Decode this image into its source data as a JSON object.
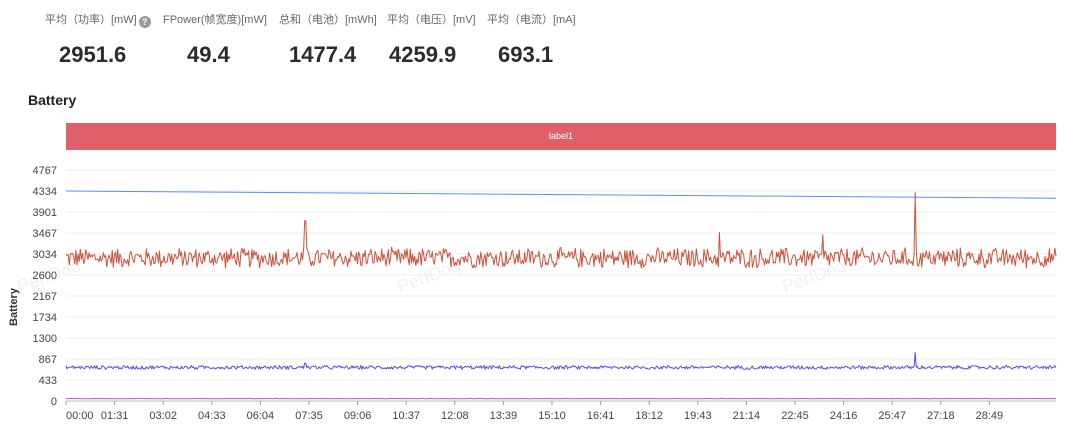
{
  "stats": [
    {
      "label": "平均（功率）[mW]",
      "value": "2951.6",
      "help_icon": "question-icon"
    },
    {
      "label": "FPower(帧宽度)[mW]",
      "value": "49.4"
    },
    {
      "label": "总和（电池）[mWh]",
      "value": "1477.4"
    },
    {
      "label": "平均（电压）[mV]",
      "value": "4259.9"
    },
    {
      "label": "平均（电流）[mA]",
      "value": "693.1"
    }
  ],
  "section_title": "Battery",
  "label_band": {
    "text": "label1",
    "color": "#e0606a"
  },
  "watermark": "PerfDog",
  "chart_data": {
    "type": "line",
    "ylabel": "Battery",
    "ylim": [
      0,
      4767
    ],
    "y_ticks": [
      "0",
      "433",
      "867",
      "1300",
      "1734",
      "2167",
      "2600",
      "3034",
      "3467",
      "3901",
      "4334",
      "4767"
    ],
    "x_ticks": [
      "00:00",
      "01:31",
      "03:02",
      "04:33",
      "06:04",
      "07:35",
      "09:06",
      "10:37",
      "12:08",
      "13:39",
      "15:10",
      "16:41",
      "18:12",
      "19:43",
      "21:14",
      "22:45",
      "24:16",
      "25:47",
      "27:18",
      "28:49"
    ],
    "x_range_seconds": [
      0,
      1870
    ],
    "grid": "horizontal",
    "series": [
      {
        "color": "#5b8ff9",
        "description": "voltage",
        "points": [
          [
            0,
            4334
          ],
          [
            1870,
            4186
          ]
        ]
      },
      {
        "color": "#c8533b",
        "description": "power",
        "mean": 2952,
        "noise": 230,
        "spikes": [
          [
            452,
            3720
          ],
          [
            1604,
            4300
          ],
          [
            1235,
            3480
          ],
          [
            1430,
            3430
          ]
        ]
      },
      {
        "color": "#6a46d6",
        "description": "current",
        "mean": 693,
        "noise": 45,
        "spikes": [
          [
            452,
            780
          ],
          [
            1604,
            1000
          ]
        ]
      },
      {
        "color": "#c257c9",
        "description": "fpower",
        "mean": 49,
        "noise": 5
      }
    ]
  }
}
